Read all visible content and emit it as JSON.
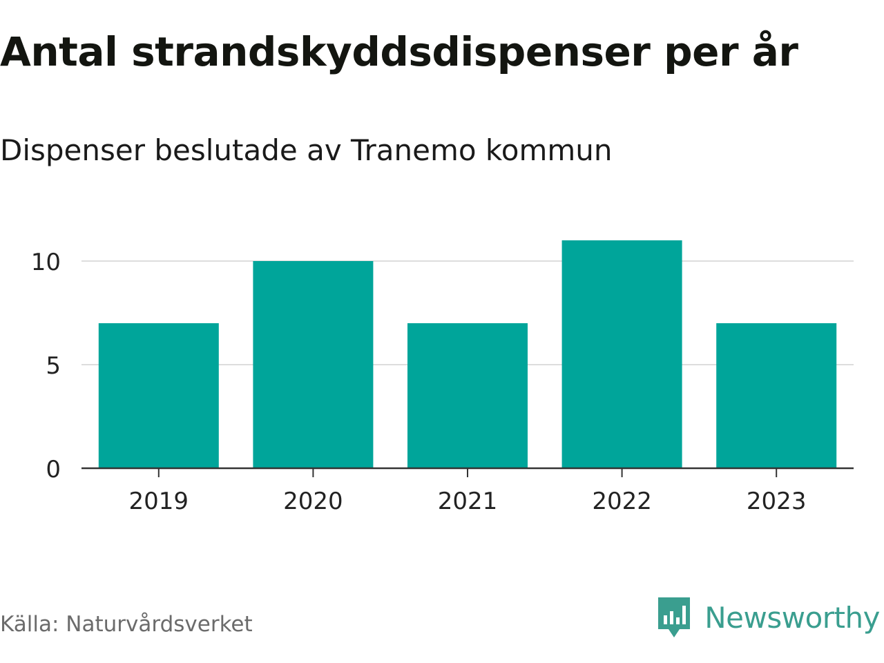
{
  "header": {
    "title": "Antal strandskyddsdispenser per år",
    "subtitle": "Dispenser beslutade av Tranemo kommun"
  },
  "footer": {
    "source": "Källa: Naturvårdsverket",
    "brand": "Newsworthy"
  },
  "colors": {
    "bar": "#00a59a",
    "grid": "#dddddd",
    "axis": "#333333",
    "brand": "#3a9e8f"
  },
  "chart_data": {
    "type": "bar",
    "title": "Antal strandskyddsdispenser per år",
    "subtitle": "Dispenser beslutade av Tranemo kommun",
    "xlabel": "",
    "ylabel": "",
    "categories": [
      "2019",
      "2020",
      "2021",
      "2022",
      "2023"
    ],
    "values": [
      7,
      10,
      7,
      11,
      7
    ],
    "ylim": [
      0,
      11
    ],
    "yticks": [
      0,
      5,
      10
    ],
    "grid": true
  }
}
